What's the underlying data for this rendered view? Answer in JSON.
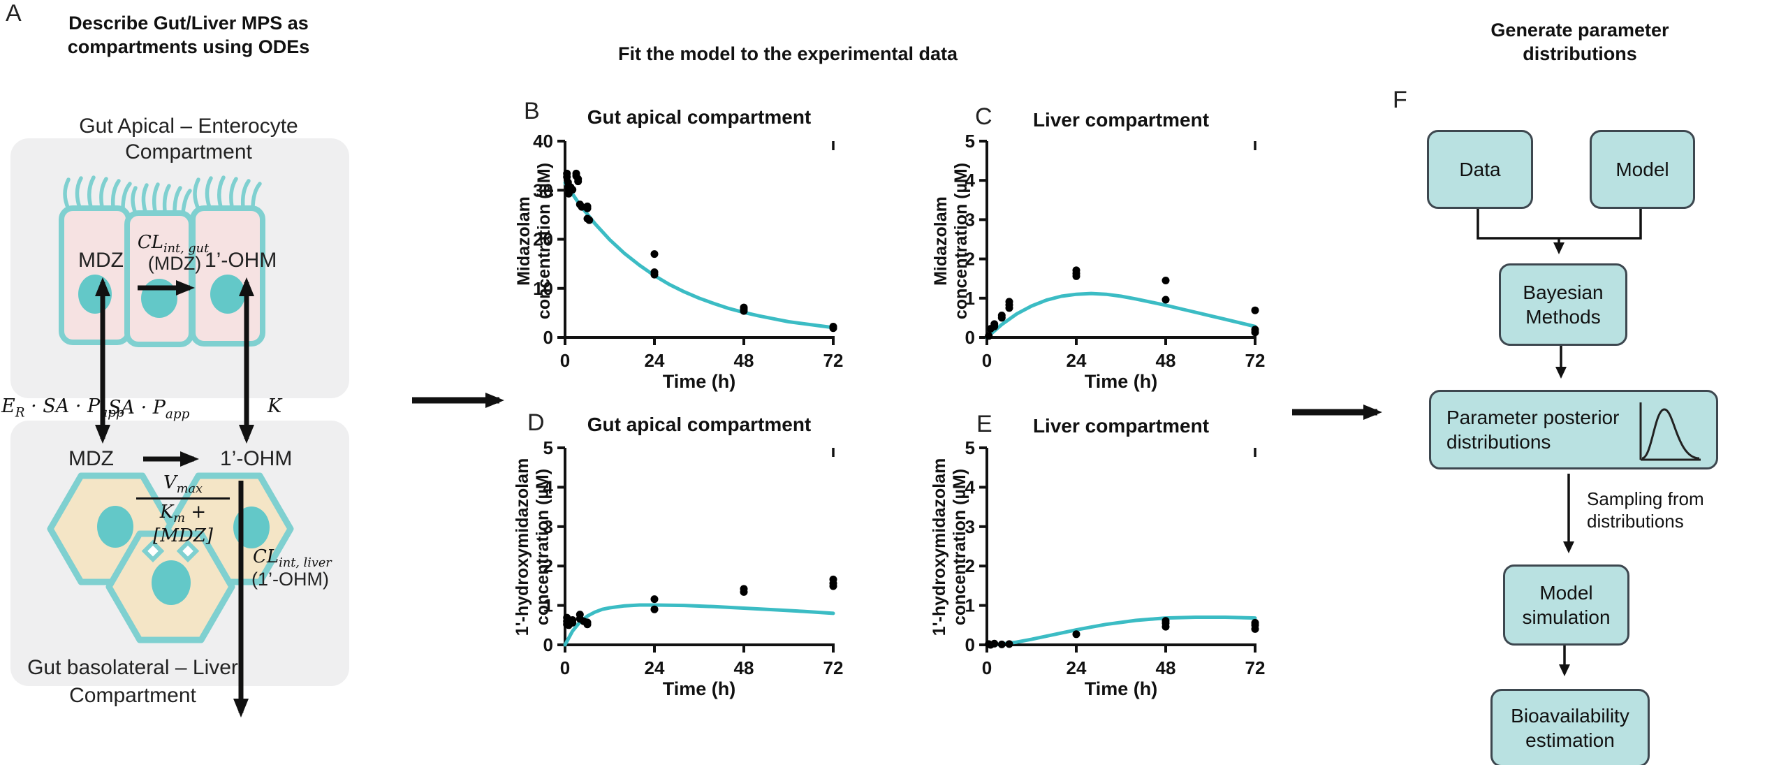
{
  "colors": {
    "accent_curve": "#3bbcc4",
    "cell_outline": "#7fd0d0",
    "cell_fill": "#f6e2e2",
    "nucleus": "#63c8c8",
    "hepatocyte_fill": "#f4e5c6",
    "compartment_bg": "#efeff0",
    "flow_box_fill": "#b9e1e1",
    "flow_box_border": "#3d474f",
    "data_point": "#000000"
  },
  "panel_a": {
    "label": "A",
    "title_line1": "Describe Gut/Liver MPS as",
    "title_line2": "compartments using ODEs",
    "top_compartment_line1": "Gut Apical – Enterocyte",
    "top_compartment_line2": "Compartment",
    "mdz_top": "MDZ",
    "cl_gut": {
      "base": "CL",
      "sub": "int, gut",
      "substrate": "(MDZ)"
    },
    "ohm_top": "1’-OHM",
    "flux_left": {
      "base": "E",
      "base_sub": "R",
      "rest": " · SA · P",
      "rest_sub": "app"
    },
    "flux_mid": {
      "rest": "SA · P",
      "rest_sub": "app"
    },
    "flux_right": "K",
    "mdz_bottom": "MDZ",
    "ohm_bottom": "1’-OHM",
    "mm": {
      "num_base": "V",
      "num_sub": "max",
      "den_base": "K",
      "den_sub": "m",
      "den_rest": " + [MDZ]"
    },
    "cl_liver": {
      "base": "CL",
      "sub": "int, liver",
      "substrate": "(1’-OHM)"
    },
    "bottom_compartment_line1": "Gut basolateral – Liver",
    "bottom_compartment_line2": "Compartment"
  },
  "middle": {
    "title": "Fit the model to the experimental data"
  },
  "flowchart": {
    "label": "F",
    "title_line1": "Generate parameter",
    "title_line2": "distributions",
    "data_box": "Data",
    "model_box": "Model",
    "bayesian_line1": "Bayesian",
    "bayesian_line2": "Methods",
    "posterior_line1": "Parameter posterior",
    "posterior_line2": "distributions",
    "sampling_line1": "Sampling from",
    "sampling_line2": "distributions",
    "simulation_line1": "Model",
    "simulation_line2": "simulation",
    "bio_line1": "Bioavailability",
    "bio_line2": "estimation"
  },
  "chart_data": [
    {
      "id": "B",
      "type": "scatter",
      "panel_label": "B",
      "title": "Gut apical compartment",
      "ylabel_line1": "Midazolam",
      "ylabel_line2": "concentration (µM)",
      "xlabel": "Time (h)",
      "ylim": [
        0,
        40
      ],
      "yticks": [
        0,
        10,
        20,
        30,
        40
      ],
      "xticks": [
        0,
        24,
        48,
        72
      ],
      "legend": "none",
      "grid": false,
      "points": [
        [
          0.5,
          33.4
        ],
        [
          0.5,
          32.7
        ],
        [
          0.8,
          31.6
        ],
        [
          1,
          30.9
        ],
        [
          1,
          30.2
        ],
        [
          1,
          29.3
        ],
        [
          1.5,
          30.6
        ],
        [
          2,
          30.1
        ],
        [
          3,
          33.4
        ],
        [
          3,
          32.9
        ],
        [
          3.5,
          32.3
        ],
        [
          3.5,
          31.8
        ],
        [
          4,
          27.1
        ],
        [
          4.5,
          26.6
        ],
        [
          6,
          26.7
        ],
        [
          6,
          26.3
        ],
        [
          6,
          24.2
        ],
        [
          6.5,
          23.9
        ],
        [
          24,
          17.0
        ],
        [
          24,
          13.3
        ],
        [
          24,
          12.8
        ],
        [
          48,
          6.1
        ],
        [
          48,
          5.8
        ],
        [
          48,
          5.4
        ],
        [
          72,
          2.2
        ],
        [
          72,
          1.9
        ]
      ],
      "curve": [
        [
          0,
          31.5
        ],
        [
          4,
          27.0
        ],
        [
          8,
          23.2
        ],
        [
          12,
          19.9
        ],
        [
          16,
          17.1
        ],
        [
          20,
          14.7
        ],
        [
          24,
          12.6
        ],
        [
          28,
          10.8
        ],
        [
          32,
          9.3
        ],
        [
          36,
          8.0
        ],
        [
          40,
          6.9
        ],
        [
          44,
          5.9
        ],
        [
          48,
          5.1
        ],
        [
          52,
          4.4
        ],
        [
          56,
          3.8
        ],
        [
          60,
          3.2
        ],
        [
          64,
          2.8
        ],
        [
          68,
          2.4
        ],
        [
          72,
          2.0
        ]
      ]
    },
    {
      "id": "C",
      "type": "scatter",
      "panel_label": "C",
      "title": "Liver compartment",
      "ylabel_line1": "Midazolam",
      "ylabel_line2": "concentration (µM)",
      "xlabel": "Time (h)",
      "ylim": [
        0,
        5
      ],
      "yticks": [
        0,
        1,
        2,
        3,
        4,
        5
      ],
      "xticks": [
        0,
        24,
        48,
        72
      ],
      "legend": "none",
      "grid": false,
      "points": [
        [
          0.5,
          0.04
        ],
        [
          1,
          0.22
        ],
        [
          2,
          0.28
        ],
        [
          2,
          0.34
        ],
        [
          4,
          0.5
        ],
        [
          4,
          0.56
        ],
        [
          6,
          0.75
        ],
        [
          6,
          0.83
        ],
        [
          6,
          0.91
        ],
        [
          24,
          1.56
        ],
        [
          24,
          1.63
        ],
        [
          24,
          1.71
        ],
        [
          48,
          1.45
        ],
        [
          48,
          0.96
        ],
        [
          72,
          0.69
        ],
        [
          72,
          0.2
        ],
        [
          72,
          0.13
        ]
      ],
      "curve": [
        [
          0,
          0
        ],
        [
          4,
          0.33
        ],
        [
          8,
          0.6
        ],
        [
          12,
          0.8
        ],
        [
          16,
          0.95
        ],
        [
          20,
          1.05
        ],
        [
          24,
          1.1
        ],
        [
          28,
          1.12
        ],
        [
          32,
          1.1
        ],
        [
          36,
          1.05
        ],
        [
          40,
          0.98
        ],
        [
          44,
          0.9
        ],
        [
          48,
          0.82
        ],
        [
          52,
          0.73
        ],
        [
          56,
          0.64
        ],
        [
          60,
          0.55
        ],
        [
          64,
          0.46
        ],
        [
          68,
          0.37
        ],
        [
          72,
          0.28
        ]
      ]
    },
    {
      "id": "D",
      "type": "scatter",
      "panel_label": "D",
      "title": "Gut apical compartment",
      "ylabel_line1": "1'-hydroxymidazolam",
      "ylabel_line2": "concentration (µM)",
      "xlabel": "Time (h)",
      "ylim": [
        0,
        5
      ],
      "yticks": [
        0,
        1,
        2,
        3,
        4,
        5
      ],
      "xticks": [
        0,
        24,
        48,
        72
      ],
      "legend": "none",
      "grid": false,
      "points": [
        [
          0.5,
          0.69
        ],
        [
          0.5,
          0.6
        ],
        [
          0.5,
          0.52
        ],
        [
          1,
          0.5
        ],
        [
          2,
          0.63
        ],
        [
          2,
          0.56
        ],
        [
          4,
          0.77
        ],
        [
          4,
          0.66
        ],
        [
          5,
          0.6
        ],
        [
          6,
          0.57
        ],
        [
          6,
          0.52
        ],
        [
          24,
          1.16
        ],
        [
          24,
          0.9
        ],
        [
          48,
          1.42
        ],
        [
          48,
          1.34
        ],
        [
          72,
          1.66
        ],
        [
          72,
          1.56
        ],
        [
          72,
          1.49
        ]
      ],
      "curve": [
        [
          0,
          0
        ],
        [
          2,
          0.35
        ],
        [
          4,
          0.58
        ],
        [
          6,
          0.73
        ],
        [
          8,
          0.83
        ],
        [
          10,
          0.9
        ],
        [
          12,
          0.94
        ],
        [
          16,
          0.99
        ],
        [
          20,
          1.01
        ],
        [
          24,
          1.01
        ],
        [
          32,
          1.0
        ],
        [
          40,
          0.97
        ],
        [
          48,
          0.93
        ],
        [
          56,
          0.89
        ],
        [
          64,
          0.85
        ],
        [
          72,
          0.8
        ]
      ]
    },
    {
      "id": "E",
      "type": "scatter",
      "panel_label": "E",
      "title": "Liver compartment",
      "ylabel_line1": "1'-hydroxymidazolam",
      "ylabel_line2": "concentration (µM)",
      "xlabel": "Time (h)",
      "ylim": [
        0,
        5
      ],
      "yticks": [
        0,
        1,
        2,
        3,
        4,
        5
      ],
      "xticks": [
        0,
        24,
        48,
        72
      ],
      "legend": "none",
      "grid": false,
      "points": [
        [
          0.5,
          0.02
        ],
        [
          1,
          0.0
        ],
        [
          2,
          0.03
        ],
        [
          4,
          0.01
        ],
        [
          6,
          0.02
        ],
        [
          24,
          0.27
        ],
        [
          48,
          0.61
        ],
        [
          48,
          0.55
        ],
        [
          48,
          0.46
        ],
        [
          72,
          0.56
        ],
        [
          72,
          0.5
        ],
        [
          72,
          0.4
        ]
      ],
      "curve": [
        [
          0,
          0
        ],
        [
          4,
          0.02
        ],
        [
          8,
          0.07
        ],
        [
          12,
          0.14
        ],
        [
          16,
          0.22
        ],
        [
          20,
          0.3
        ],
        [
          24,
          0.38
        ],
        [
          28,
          0.45
        ],
        [
          32,
          0.52
        ],
        [
          36,
          0.57
        ],
        [
          40,
          0.62
        ],
        [
          44,
          0.65
        ],
        [
          48,
          0.68
        ],
        [
          56,
          0.7
        ],
        [
          64,
          0.7
        ],
        [
          72,
          0.68
        ]
      ]
    }
  ]
}
